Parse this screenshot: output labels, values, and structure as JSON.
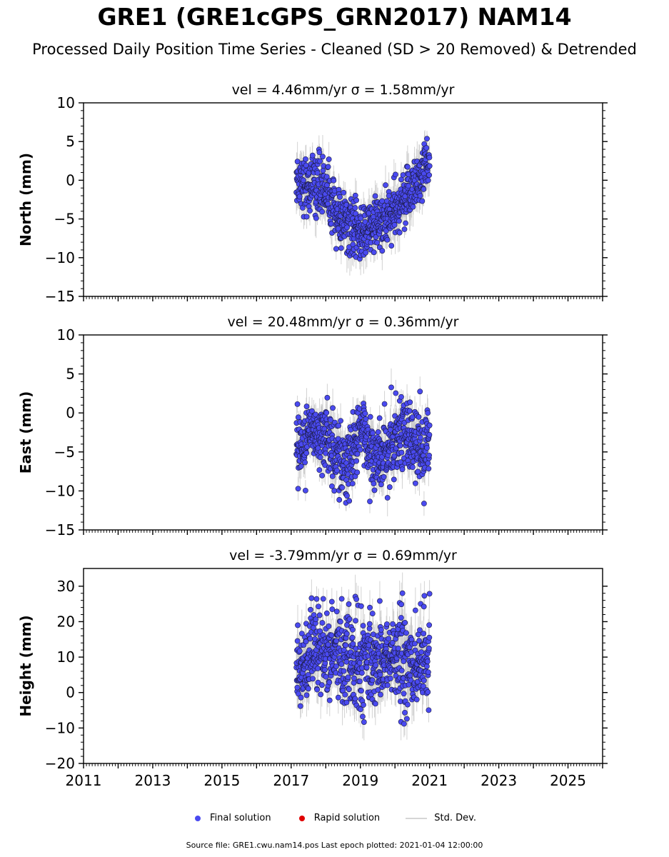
{
  "title": "GRE1 (GRE1cGPS_GRN2017) NAM14",
  "subtitle": "Processed Daily Position Time Series - Cleaned (SD > 20 Removed) & Detrended",
  "legend": {
    "final_label": "Final solution",
    "rapid_label": "Rapid solution",
    "sd_label": "Std. Dev.",
    "final_color": "#4a4af0",
    "rapid_color": "#e00000",
    "sd_color": "#c8c8c8"
  },
  "source_text": "Source file: GRE1.cwu.nam14.pos  Last epoch plotted: 2021-01-04 12:00:00",
  "chart_data": [
    {
      "type": "scatter",
      "component": "north",
      "title": "vel = 4.46mm/yr   σ = 1.58mm/yr",
      "ylabel": "North (mm)",
      "xlim": [
        2011,
        2026
      ],
      "ylim": [
        -15,
        10
      ],
      "yticks": [
        -15,
        -10,
        -5,
        0,
        5,
        10
      ],
      "xticks": [
        2011,
        2013,
        2015,
        2017,
        2019,
        2021,
        2023,
        2025
      ],
      "show_xtick_labels": false,
      "grid": false,
      "series": [
        {
          "data_span": [
            2017.15,
            2021.0
          ],
          "trend_x": [
            2017.15,
            2017.5,
            2017.75,
            2018.0,
            2018.3,
            2018.6,
            2018.9,
            2019.2,
            2019.5,
            2019.8,
            2020.1,
            2020.4,
            2020.7,
            2021.0
          ],
          "trend_y": [
            0.3,
            -0.8,
            -0.5,
            -1.0,
            -4.5,
            -5.5,
            -7.0,
            -6.5,
            -5.5,
            -5.0,
            -4.0,
            -1.5,
            0.5,
            2.5
          ],
          "scatter_sd": 1.8,
          "sd_min": 0.8,
          "sd_max": 2.8,
          "y_range_observed": [
            -11,
            6.5
          ]
        }
      ]
    },
    {
      "type": "scatter",
      "component": "east",
      "title": "vel = 20.48mm/yr   σ = 0.36mm/yr",
      "ylabel": "East (mm)",
      "xlim": [
        2011,
        2026
      ],
      "ylim": [
        -15,
        10
      ],
      "yticks": [
        -15,
        -10,
        -5,
        0,
        5,
        10
      ],
      "xticks": [
        2011,
        2013,
        2015,
        2017,
        2019,
        2021,
        2023,
        2025
      ],
      "show_xtick_labels": false,
      "grid": false,
      "series": [
        {
          "data_span": [
            2017.15,
            2021.0
          ],
          "trend_x": [
            2017.15,
            2017.4,
            2017.7,
            2018.0,
            2018.3,
            2018.6,
            2018.9,
            2019.1,
            2019.4,
            2019.7,
            2019.9,
            2020.2,
            2020.5,
            2020.8,
            2021.0
          ],
          "trend_y": [
            -3.5,
            -4.0,
            -2.0,
            -3.0,
            -5.0,
            -7.0,
            -4.0,
            -2.0,
            -5.5,
            -6.0,
            -4.0,
            -1.5,
            -4.0,
            -5.0,
            -3.5
          ],
          "scatter_sd": 2.2,
          "sd_min": 0.8,
          "sd_max": 2.5,
          "y_range_observed": [
            -12.5,
            5
          ]
        }
      ]
    },
    {
      "type": "scatter",
      "component": "height",
      "title": "vel = -3.79mm/yr   σ = 0.69mm/yr",
      "ylabel": "Height (mm)",
      "xlim": [
        2011,
        2026
      ],
      "ylim": [
        -20,
        35
      ],
      "yticks": [
        -20,
        -10,
        0,
        10,
        20,
        30
      ],
      "xticks": [
        2011,
        2013,
        2015,
        2017,
        2019,
        2021,
        2023,
        2025
      ],
      "xtick_labels": [
        "2011",
        "2013",
        "2015",
        "2017",
        "2019",
        "2021",
        "2023",
        "2025"
      ],
      "show_xtick_labels": true,
      "grid": false,
      "series": [
        {
          "data_span": [
            2017.15,
            2021.0
          ],
          "trend_x": [
            2017.15,
            2017.6,
            2018.0,
            2018.5,
            2019.0,
            2019.5,
            2020.0,
            2020.5,
            2021.0
          ],
          "trend_y": [
            8,
            9,
            12,
            10,
            8,
            9,
            10,
            7,
            9
          ],
          "scatter_sd": 6.5,
          "sd_min": 3.0,
          "sd_max": 7.0,
          "y_range_observed": [
            -17,
            31.5
          ]
        }
      ]
    }
  ]
}
